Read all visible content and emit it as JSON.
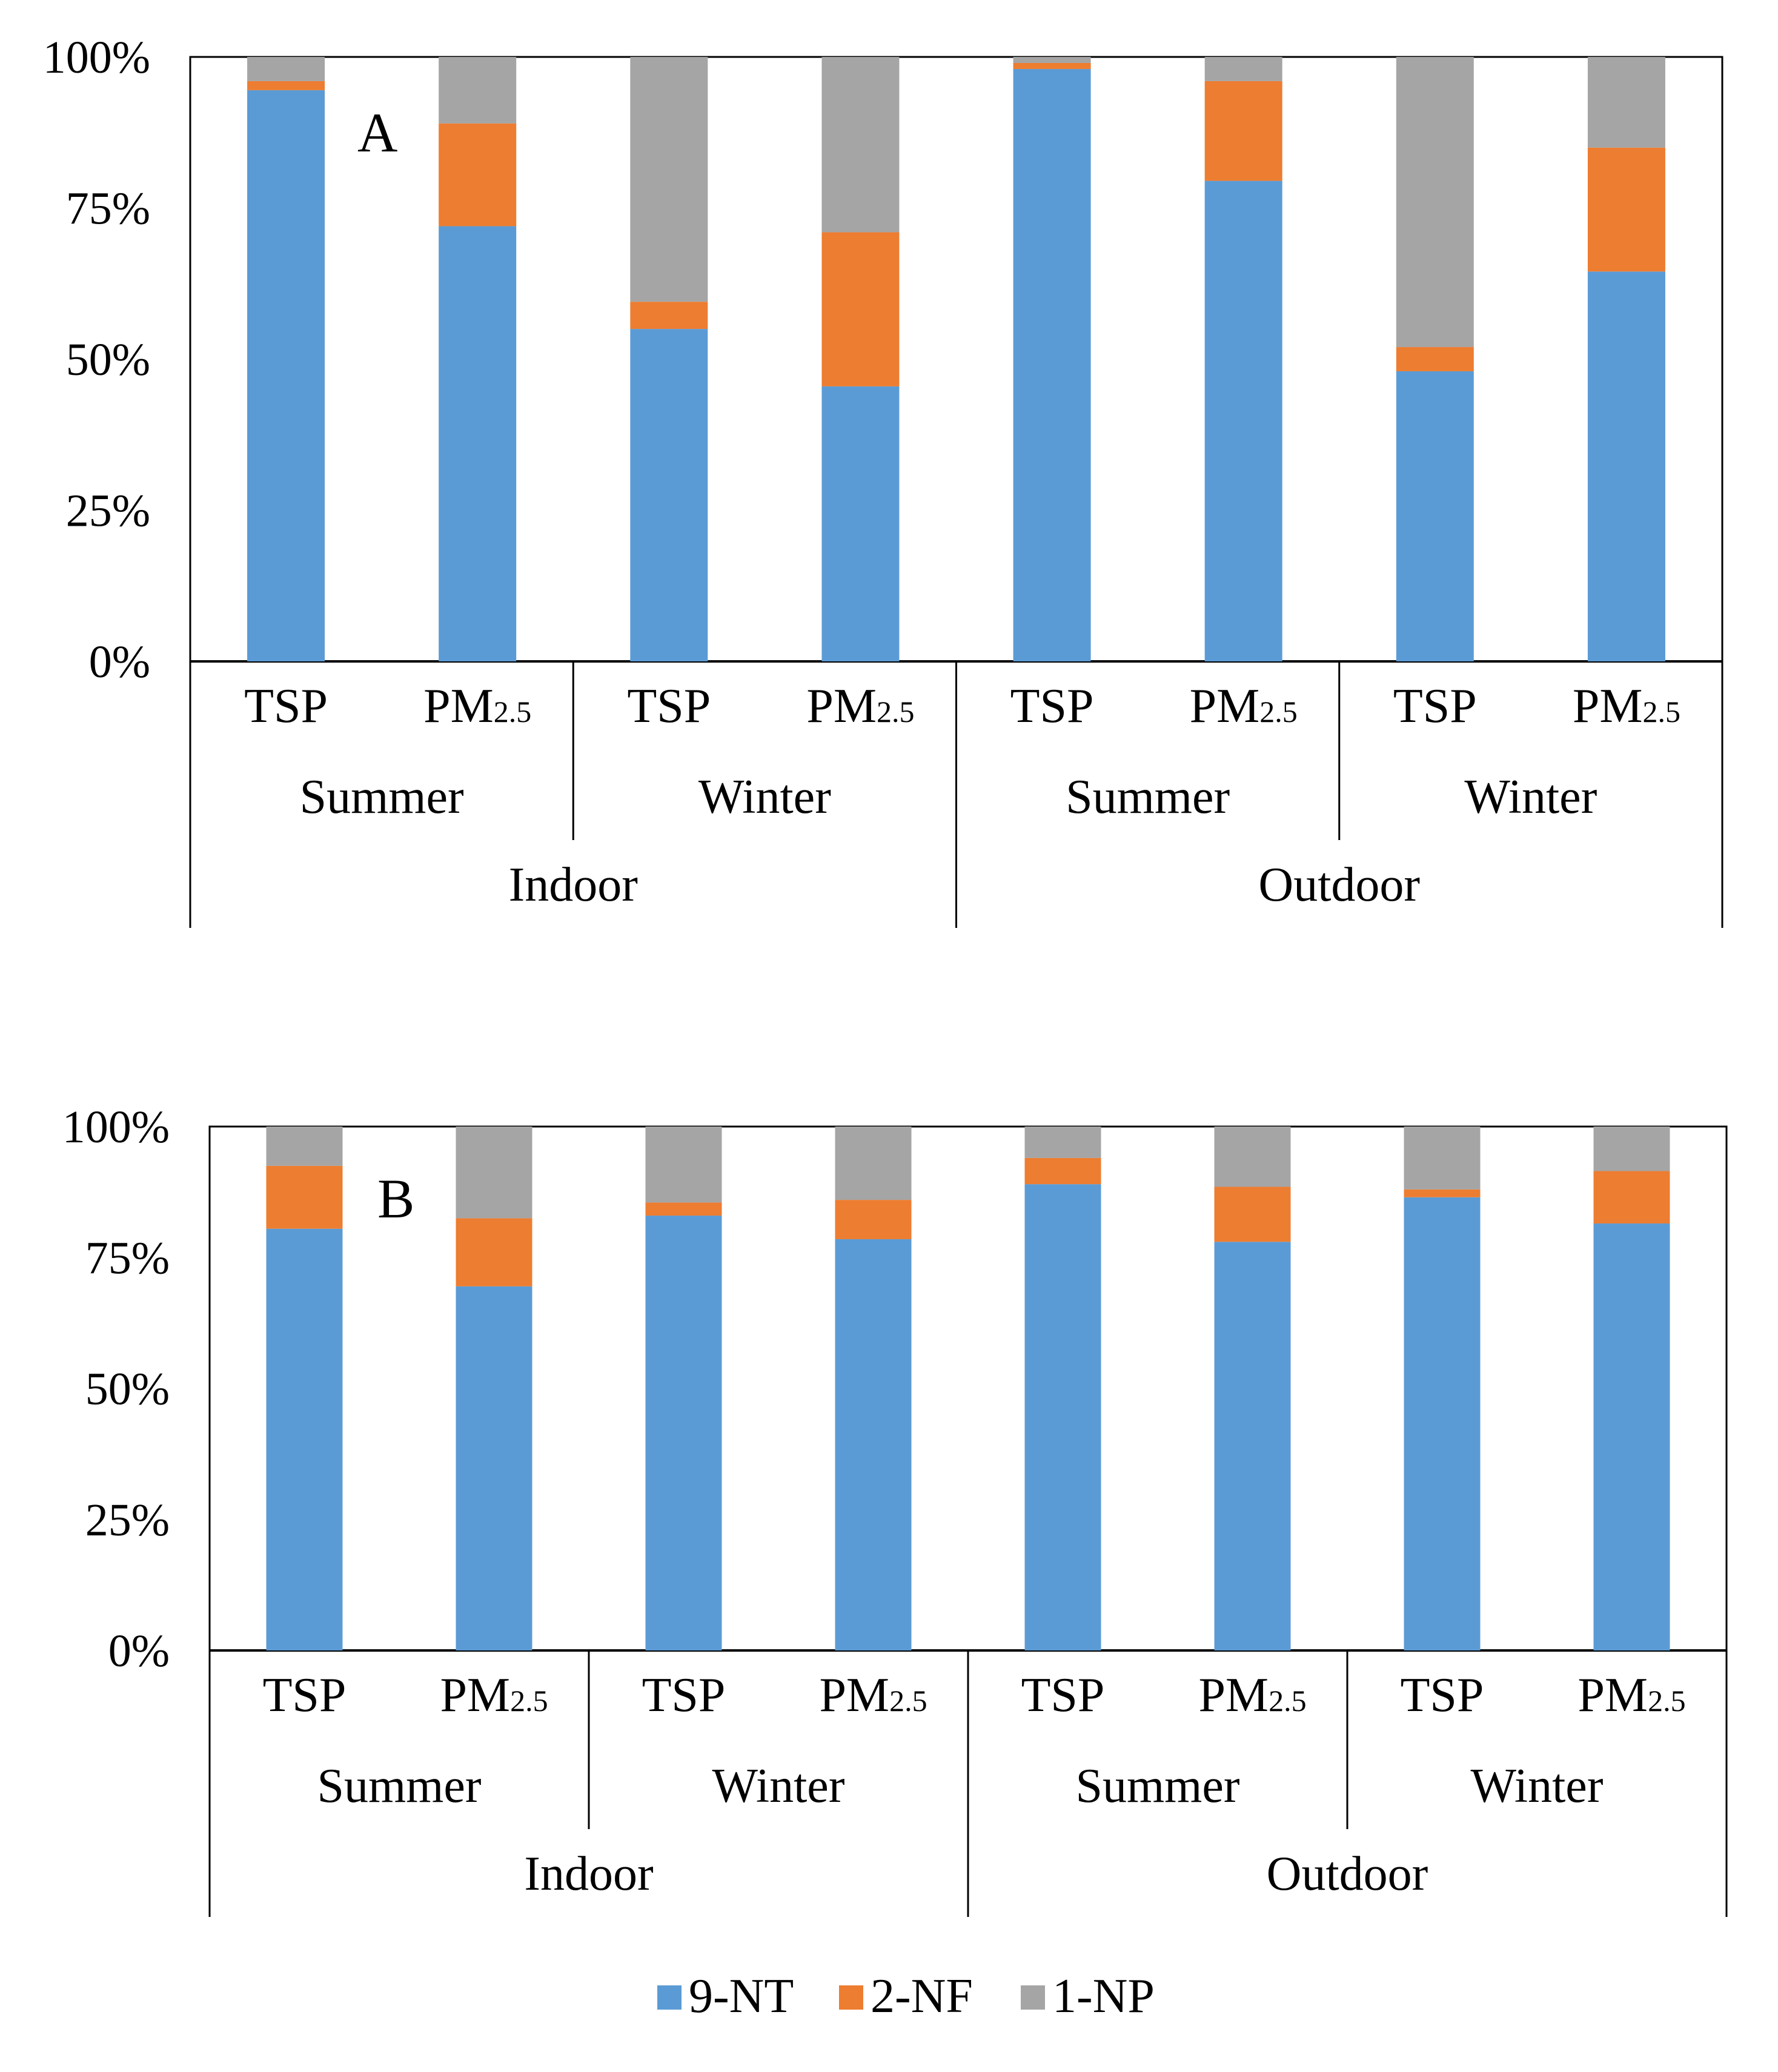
{
  "chart_data": [
    {
      "type": "bar",
      "stacked": "percent",
      "panel_label": "A",
      "ylim": [
        0,
        100
      ],
      "yticks": [
        "0%",
        "25%",
        "50%",
        "75%",
        "100%"
      ],
      "ytick_values": [
        0,
        25,
        50,
        75,
        100
      ],
      "categories": [
        {
          "particle": "TSP",
          "season": "Summer",
          "location": "Indoor"
        },
        {
          "particle": "PM2.5",
          "season": "Summer",
          "location": "Indoor"
        },
        {
          "particle": "TSP",
          "season": "Winter",
          "location": "Indoor"
        },
        {
          "particle": "PM2.5",
          "season": "Winter",
          "location": "Indoor"
        },
        {
          "particle": "TSP",
          "season": "Summer",
          "location": "Outdoor"
        },
        {
          "particle": "PM2.5",
          "season": "Summer",
          "location": "Outdoor"
        },
        {
          "particle": "TSP",
          "season": "Winter",
          "location": "Outdoor"
        },
        {
          "particle": "PM2.5",
          "season": "Winter",
          "location": "Outdoor"
        }
      ],
      "particle_labels": {
        "TSP": "TSP",
        "PM2.5": {
          "main": "PM",
          "sub": "2.5"
        }
      },
      "series": [
        {
          "name": "9-NT",
          "color": "#5B9BD5",
          "values": [
            94.5,
            72.0,
            55.0,
            45.5,
            98.0,
            79.5,
            48.0,
            64.5
          ]
        },
        {
          "name": "2-NF",
          "color": "#ED7D31",
          "values": [
            1.5,
            17.0,
            4.5,
            25.5,
            1.0,
            16.5,
            4.0,
            20.5
          ]
        },
        {
          "name": "1-NP",
          "color": "#A5A5A5",
          "values": [
            4.0,
            11.0,
            40.5,
            29.0,
            1.0,
            4.0,
            48.0,
            15.0
          ]
        }
      ]
    },
    {
      "type": "bar",
      "stacked": "percent",
      "panel_label": "B",
      "ylim": [
        0,
        100
      ],
      "yticks": [
        "0%",
        "25%",
        "50%",
        "75%",
        "100%"
      ],
      "ytick_values": [
        0,
        25,
        50,
        75,
        100
      ],
      "categories": [
        {
          "particle": "TSP",
          "season": "Summer",
          "location": "Indoor"
        },
        {
          "particle": "PM2.5",
          "season": "Summer",
          "location": "Indoor"
        },
        {
          "particle": "TSP",
          "season": "Winter",
          "location": "Indoor"
        },
        {
          "particle": "PM2.5",
          "season": "Winter",
          "location": "Indoor"
        },
        {
          "particle": "TSP",
          "season": "Summer",
          "location": "Outdoor"
        },
        {
          "particle": "PM2.5",
          "season": "Summer",
          "location": "Outdoor"
        },
        {
          "particle": "TSP",
          "season": "Winter",
          "location": "Outdoor"
        },
        {
          "particle": "PM2.5",
          "season": "Winter",
          "location": "Outdoor"
        }
      ],
      "particle_labels": {
        "TSP": "TSP",
        "PM2.5": {
          "main": "PM",
          "sub": "2.5"
        }
      },
      "series": [
        {
          "name": "9-NT",
          "color": "#5B9BD5",
          "values": [
            80.5,
            69.5,
            83.0,
            78.5,
            89.0,
            78.0,
            86.5,
            81.5
          ]
        },
        {
          "name": "2-NF",
          "color": "#ED7D31",
          "values": [
            12.0,
            13.0,
            2.5,
            7.5,
            5.0,
            10.5,
            1.5,
            10.0
          ]
        },
        {
          "name": "1-NP",
          "color": "#A5A5A5",
          "values": [
            7.5,
            17.5,
            14.5,
            14.0,
            6.0,
            11.5,
            12.0,
            8.5
          ]
        }
      ]
    }
  ],
  "legend": {
    "position": "bottom-center",
    "items": [
      {
        "name": "9-NT",
        "color": "#5B9BD5"
      },
      {
        "name": "2-NF",
        "color": "#ED7D31"
      },
      {
        "name": "1-NP",
        "color": "#A5A5A5"
      }
    ]
  }
}
